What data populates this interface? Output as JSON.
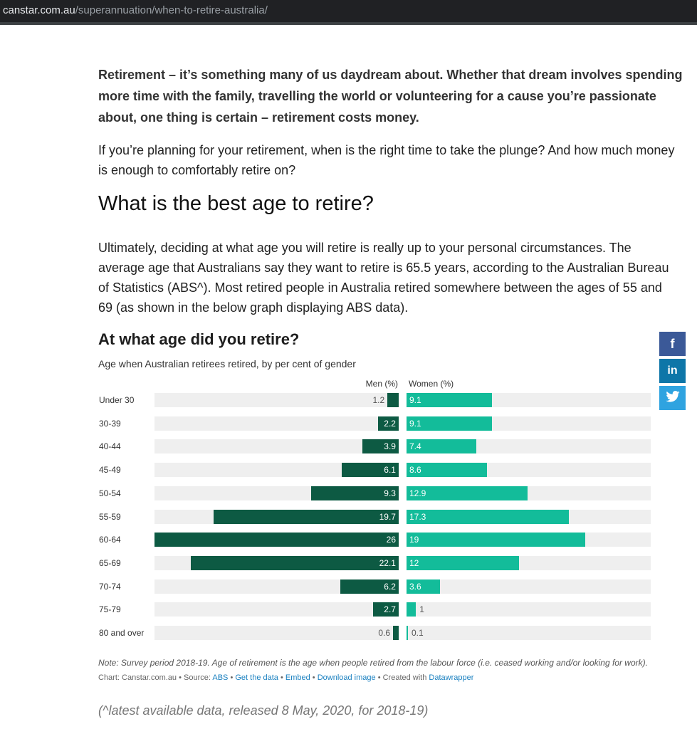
{
  "browser": {
    "url_host": "canstar.com.au",
    "url_path": "/superannuation/when-to-retire-australia/"
  },
  "article": {
    "lead": "Retirement – it’s something many of us daydream about. Whether that dream involves spending more time with the family, travelling the world or volunteering for a cause you’re passionate about, one thing is certain – retirement costs money.",
    "para1": "If you’re planning for your retirement, when is the right time to take the plunge? And how much money is enough to comfortably retire on?",
    "heading": "What is the best age to retire?",
    "para2": "Ultimately, deciding at what age you will retire is really up to your personal circumstances. The average age that Australians say they want to retire is 65.5 years, according to the Australian Bureau of Statistics (ABS^). Most retired people in Australia retired somewhere between the ages of 55 and 69 (as shown in the below graph displaying ABS data).",
    "footer_note": "(^latest available data, released 8 May, 2020, for 2018-19)"
  },
  "chart_data": {
    "type": "bar",
    "orientation": "horizontal-diverging",
    "title": "At what age did you retire?",
    "subtitle": "Age when Australian retirees retired, by per cent of gender",
    "categories": [
      "Under 30",
      "30-39",
      "40-44",
      "45-49",
      "50-54",
      "55-59",
      "60-64",
      "65-69",
      "70-74",
      "75-79",
      "80 and over"
    ],
    "series": [
      {
        "name": "Men (%)",
        "color": "#0d5a43",
        "values": [
          1.2,
          2.2,
          3.9,
          6.1,
          9.3,
          19.7,
          26,
          22.1,
          6.2,
          2.7,
          0.6
        ]
      },
      {
        "name": "Women (%)",
        "color": "#13bc9a",
        "values": [
          9.1,
          9.1,
          7.4,
          8.6,
          12.9,
          17.3,
          19,
          12,
          3.6,
          1,
          0.1
        ]
      }
    ],
    "xlim": [
      0,
      26
    ],
    "legend": "top",
    "note": "Note: Survey period 2018-19. Age of retirement is the age when people retired from the labour force (i.e. ceased working and/or looking for work).",
    "credit": {
      "prefix": "Chart: Canstar.com.au • Source: ",
      "source_link": "ABS",
      "sep": " • ",
      "get_data": "Get the data",
      "embed": "Embed",
      "download": "Download image",
      "created_with": "Created with ",
      "tool": "Datawrapper"
    }
  },
  "share": {
    "facebook": "f",
    "linkedin": "in",
    "twitter": "🐦",
    "icons": [
      "facebook-icon",
      "linkedin-icon",
      "twitter-icon"
    ]
  }
}
